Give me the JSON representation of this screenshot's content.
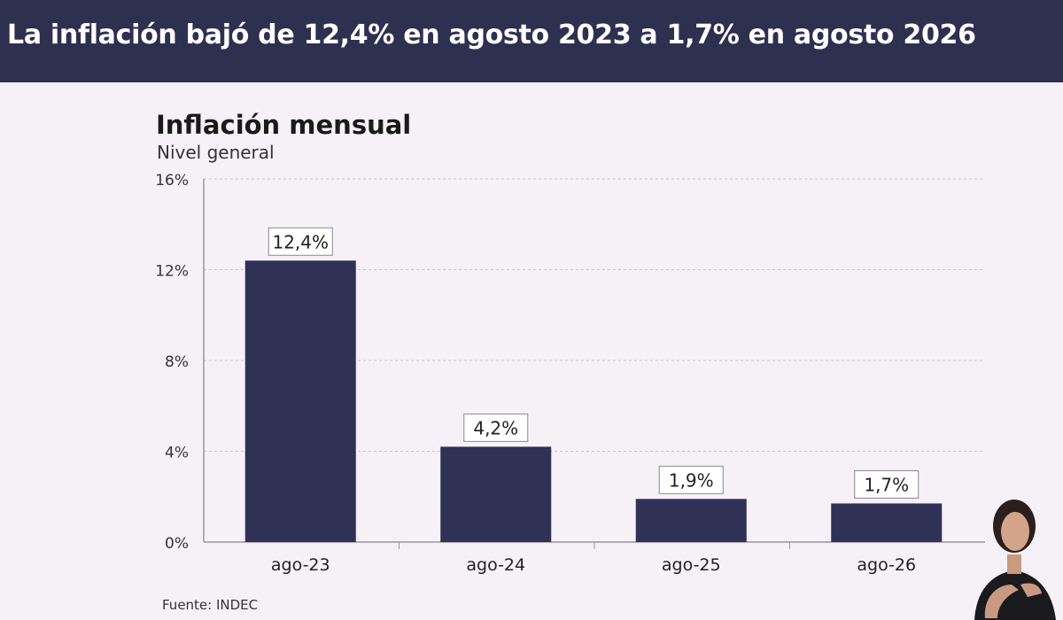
{
  "banner": {
    "title": "La inflación bajó de 12,4% en agosto 2023 a 1,7% en agosto 2026"
  },
  "source": "Fuente: INDEC",
  "colors": {
    "banner_bg": "#2e3050",
    "bar": "#2f3155",
    "grid": "#c9c4cc",
    "axis": "#9a959e",
    "page_bg": "#f6f1f7"
  },
  "chart_data": {
    "type": "bar",
    "title": "Inflación mensual",
    "subtitle": "Nivel general",
    "categories": [
      "ago-23",
      "ago-24",
      "ago-25",
      "ago-26"
    ],
    "values": [
      12.4,
      4.2,
      1.9,
      1.7
    ],
    "data_labels": [
      "12,4%",
      "4,2%",
      "1,9%",
      "1,7%"
    ],
    "yticks": [
      0,
      4,
      8,
      12,
      16
    ],
    "ytick_labels": [
      "0%",
      "4%",
      "8%",
      "12%",
      "16%"
    ],
    "ylim": [
      0,
      16
    ],
    "grid": true,
    "legend": "none"
  }
}
